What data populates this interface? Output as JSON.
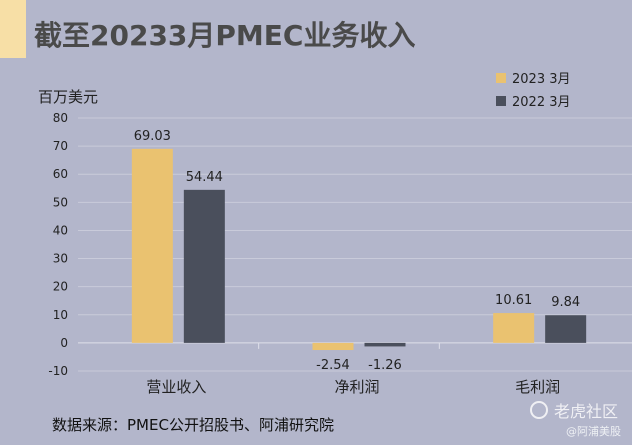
{
  "header": {
    "title": "截至20233月PMEC业务收入"
  },
  "footer": {
    "source": "数据来源：PMEC公开招股书、阿浦研究院"
  },
  "watermark": {
    "brand": "老虎社区",
    "handle": "@阿浦美股"
  },
  "colors": {
    "background": "#b3b6cb",
    "accent": "#f7dfa6",
    "series_2023": "#eac270",
    "series_2022": "#4a4f5c"
  },
  "chart_data": {
    "type": "bar",
    "title": "截至20233月PMEC业务收入",
    "ylabel": "百万美元",
    "xlabel": "",
    "categories": [
      "营业收入",
      "净利润",
      "毛利润"
    ],
    "series": [
      {
        "name": "2023 3月",
        "values": [
          69.03,
          -2.54,
          10.61
        ],
        "labels": [
          "69.03",
          "-2.54",
          "10.61"
        ]
      },
      {
        "name": "2022 3月",
        "values": [
          54.44,
          -1.26,
          9.84
        ],
        "labels": [
          "54.44",
          "-1.26",
          "9.84"
        ]
      }
    ],
    "ylim": [
      -10,
      80
    ],
    "yticks": [
      "-10",
      "0",
      "10",
      "20",
      "30",
      "40",
      "50",
      "60",
      "70",
      "80"
    ],
    "grid": true,
    "legend": "top-right"
  }
}
